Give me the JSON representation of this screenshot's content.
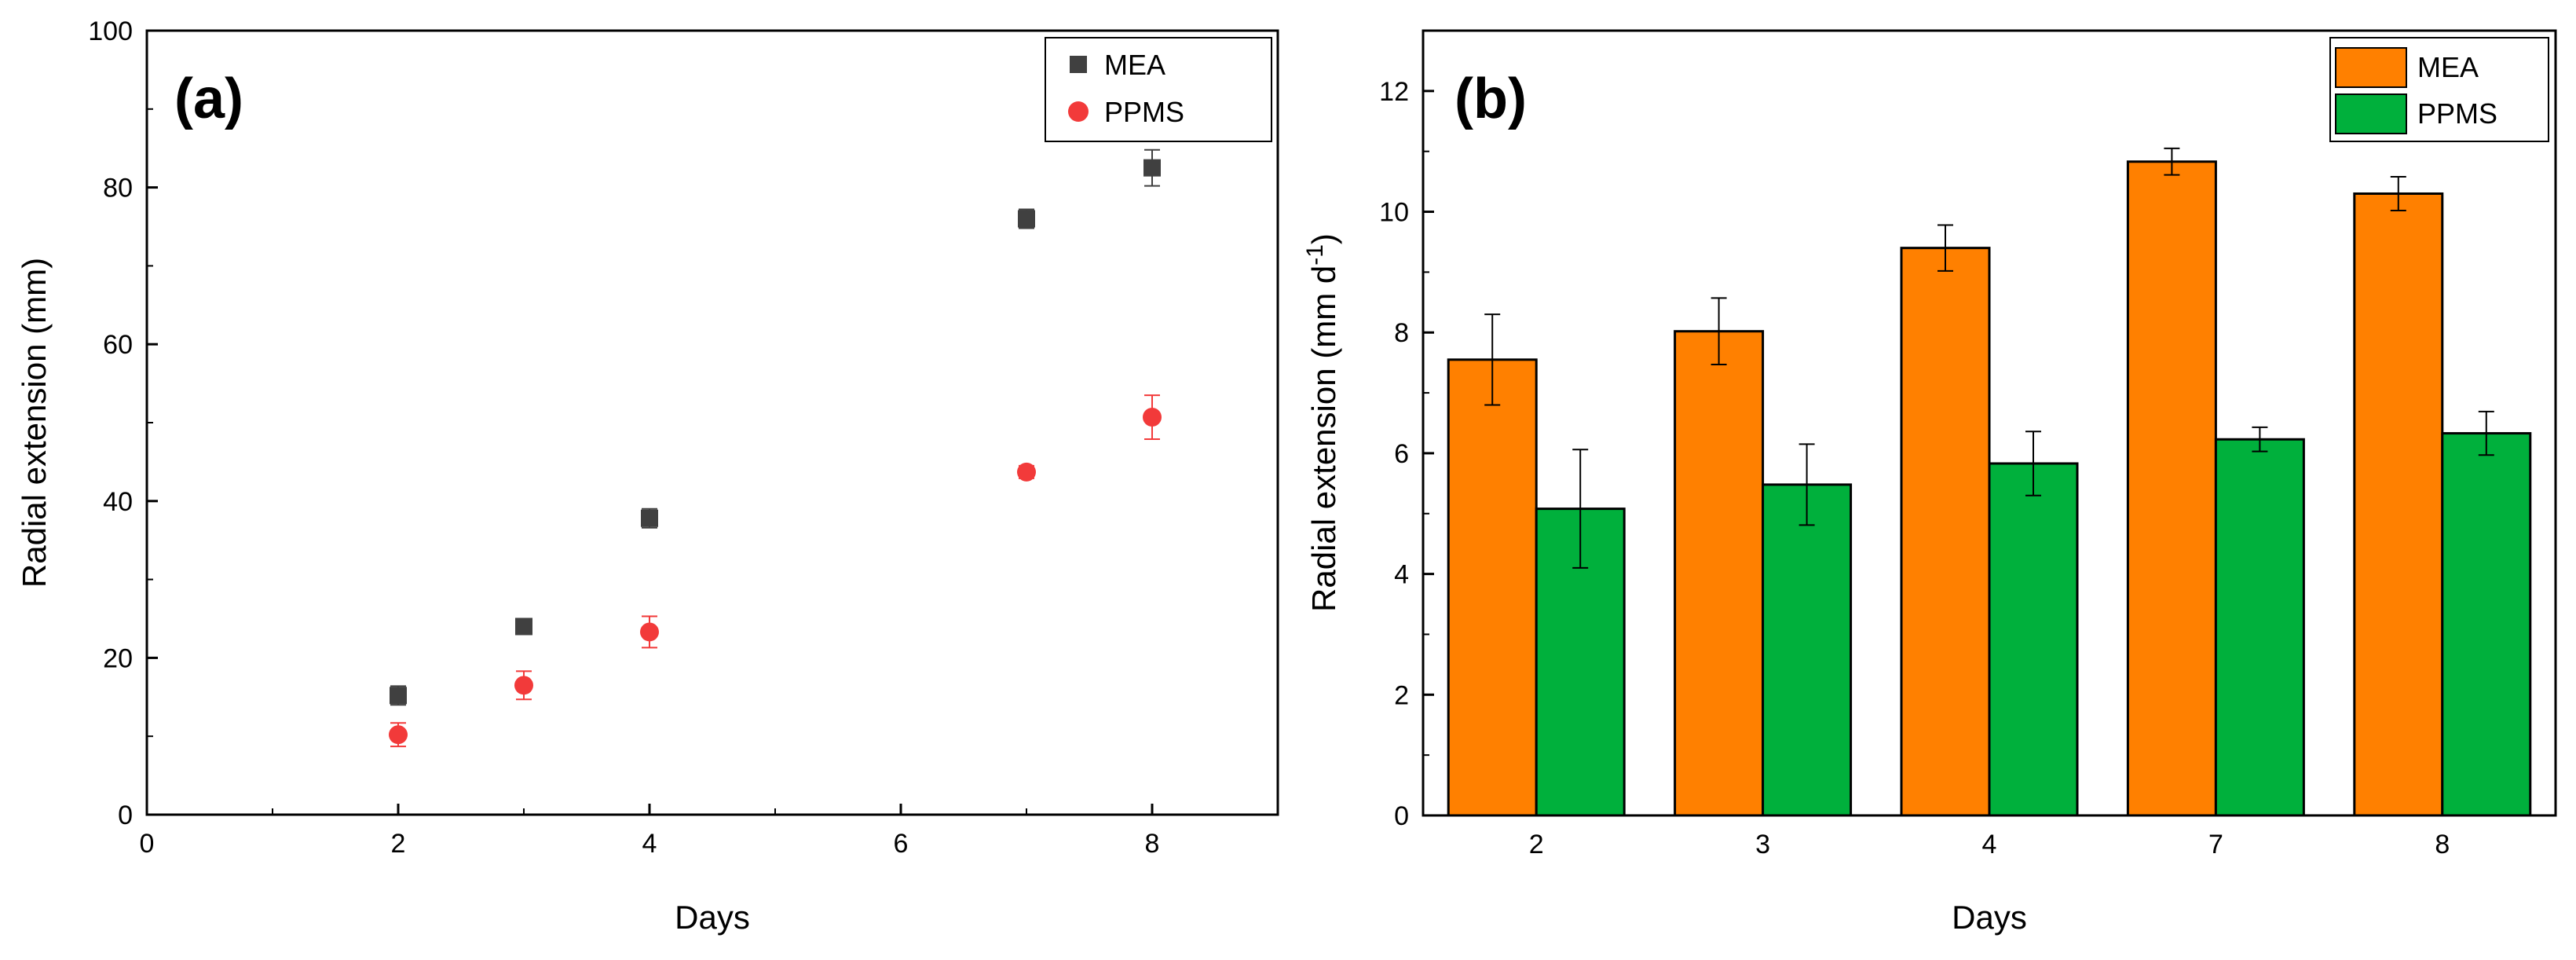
{
  "colors": {
    "mea_marker": "#404040",
    "ppms_marker": "#F23A3A",
    "mea_bar": "#FF8000",
    "ppms_bar": "#00B03C",
    "axis": "#000000"
  },
  "chart_data": [
    {
      "type": "scatter",
      "panel_label": "(a)",
      "xlabel": "Days",
      "ylabel": "Radial extension (mm)",
      "xlim": [
        0,
        9
      ],
      "ylim": [
        0,
        100
      ],
      "x_ticks": [
        0,
        2,
        4,
        6,
        8
      ],
      "x_tick_labels": [
        "0",
        "2",
        "4",
        "6",
        "8"
      ],
      "y_ticks": [
        0,
        20,
        40,
        60,
        80,
        100
      ],
      "y_tick_labels": [
        "0",
        "20",
        "40",
        "60",
        "80",
        "100"
      ],
      "legend_position": "top-right",
      "series": [
        {
          "name": "MEA",
          "marker": "square",
          "x": [
            2,
            3,
            4,
            7,
            8
          ],
          "y": [
            15.2,
            24.0,
            37.8,
            76.0,
            82.5
          ],
          "err": [
            1.2,
            1.0,
            1.2,
            1.2,
            2.3
          ]
        },
        {
          "name": "PPMS",
          "marker": "circle",
          "x": [
            2,
            3,
            4,
            7,
            8
          ],
          "y": [
            10.2,
            16.5,
            23.3,
            43.7,
            50.7
          ],
          "err": [
            1.5,
            1.8,
            2.0,
            0.8,
            2.8
          ]
        }
      ]
    },
    {
      "type": "bar",
      "panel_label": "(b)",
      "xlabel": "Days",
      "ylabel_main": "Radial extension (mm d",
      "ylabel_sup": "-1",
      "ylabel_end": ")",
      "ylim": [
        0,
        13
      ],
      "y_ticks": [
        0,
        2,
        4,
        6,
        8,
        10,
        12
      ],
      "y_tick_labels": [
        "0",
        "2",
        "4",
        "6",
        "8",
        "10",
        "12"
      ],
      "categories": [
        "2",
        "3",
        "4",
        "7",
        "8"
      ],
      "legend_position": "top-right",
      "series": [
        {
          "name": "MEA",
          "values": [
            7.55,
            8.02,
            9.4,
            10.83,
            10.3
          ],
          "err": [
            0.75,
            0.55,
            0.38,
            0.22,
            0.28
          ]
        },
        {
          "name": "PPMS",
          "values": [
            5.08,
            5.48,
            5.83,
            6.23,
            6.33
          ],
          "err": [
            0.98,
            0.67,
            0.53,
            0.2,
            0.36
          ]
        }
      ]
    }
  ]
}
